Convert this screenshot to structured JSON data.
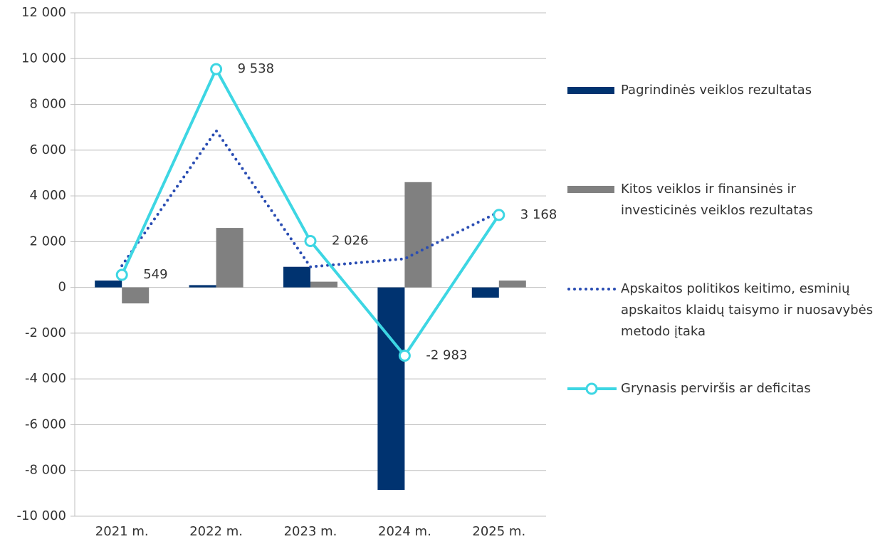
{
  "chart_data": {
    "type": "bar",
    "categories": [
      "2021 m.",
      "2022 m.",
      "2023 m.",
      "2024 m.",
      "2025 m."
    ],
    "series": [
      {
        "name": "Pagrindinės veiklos rezultatas",
        "type": "bar",
        "color": "#003370",
        "values": [
          300,
          100,
          900,
          -8850,
          -450
        ]
      },
      {
        "name": "Kitos veiklos ir finansinės ir investicinės veiklos rezultatas",
        "type": "bar",
        "color": "#808080",
        "values": [
          -700,
          2600,
          250,
          4600,
          300
        ]
      },
      {
        "name": "Apskaitos politikos keitimo, esminių apskaitos klaidų taisymo ir nuosavybės metodo įtaka",
        "type": "dotted-line",
        "color": "#2a4db3",
        "values": [
          950,
          6850,
          900,
          1250,
          3300
        ]
      },
      {
        "name": "Grynasis perviršis ar deficitas",
        "type": "line-marker",
        "color": "#3dd6e3",
        "values": [
          549,
          9538,
          2026,
          -2983,
          3168
        ],
        "value_labels": [
          "549",
          "9 538",
          "2 026",
          "-2 983",
          "3 168"
        ]
      }
    ],
    "ylim": [
      -10000,
      12000
    ],
    "yticks": [
      {
        "value": -10000,
        "label": "-10 000"
      },
      {
        "value": -8000,
        "label": "-8 000"
      },
      {
        "value": -6000,
        "label": "-6 000"
      },
      {
        "value": -4000,
        "label": "-4 000"
      },
      {
        "value": -2000,
        "label": "-2 000"
      },
      0,
      {
        "value": 2000,
        "label": "2 000"
      },
      {
        "value": 4000,
        "label": "4 000"
      },
      {
        "value": 6000,
        "label": "6 000"
      },
      {
        "value": 8000,
        "label": "8 000"
      },
      {
        "value": 10000,
        "label": "10 000"
      },
      {
        "value": 12000,
        "label": "12 000"
      }
    ],
    "grid": true,
    "legend": "right"
  }
}
